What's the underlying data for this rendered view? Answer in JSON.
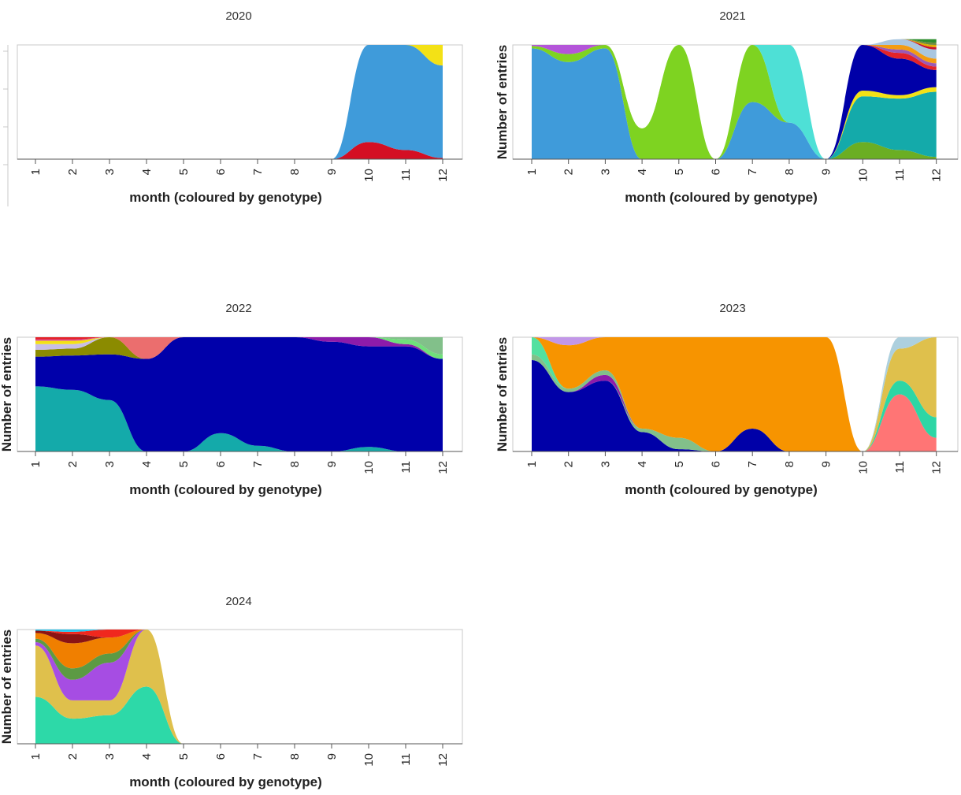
{
  "chart_data": [
    {
      "type": "area",
      "title": "2020",
      "xlabel": "month (coloured by genotype)",
      "ylabel": "",
      "categories": [
        "1",
        "2",
        "3",
        "4",
        "5",
        "6",
        "7",
        "8",
        "9",
        "10",
        "11",
        "12"
      ],
      "normalized": true,
      "series": [
        {
          "color": "#D40F23",
          "values": [
            0,
            0,
            0,
            0,
            0,
            0,
            0,
            0,
            0,
            0.15,
            0.08,
            0.01
          ]
        },
        {
          "color": "#3F9BDA",
          "values": [
            0,
            0,
            0,
            0,
            0,
            0,
            0,
            0,
            0,
            0.85,
            0.92,
            0.81
          ]
        },
        {
          "color": "#F3E116",
          "values": [
            0,
            0,
            0,
            0,
            0,
            0,
            0,
            0,
            0,
            0,
            0,
            0.18
          ]
        }
      ]
    },
    {
      "type": "area",
      "title": "2021",
      "xlabel": "month (coloured by genotype)",
      "ylabel": "Number of entries",
      "categories": [
        "1",
        "2",
        "3",
        "4",
        "5",
        "6",
        "7",
        "8",
        "9",
        "10",
        "11",
        "12"
      ],
      "normalized": true,
      "series": [
        {
          "color": "#6BAE23",
          "values": [
            0,
            0,
            0,
            0,
            0,
            0,
            0,
            0,
            0,
            0.15,
            0.08,
            0.02
          ]
        },
        {
          "color": "#14AAAA",
          "values": [
            0,
            0,
            0,
            0,
            0,
            0,
            0,
            0,
            0,
            0.4,
            0.45,
            0.57
          ]
        },
        {
          "color": "#F3E116",
          "values": [
            0,
            0,
            0,
            0,
            0,
            0,
            0,
            0,
            0,
            0.05,
            0.03,
            0.04
          ]
        },
        {
          "color": "#3F9BDA",
          "values": [
            0.97,
            0.85,
            0.97,
            0,
            0,
            0,
            0.5,
            0.32,
            0,
            0,
            0,
            0
          ]
        },
        {
          "color": "#7ED321",
          "values": [
            0.02,
            0.07,
            0.03,
            0.27,
            1,
            0,
            0.5,
            0,
            0,
            0,
            0,
            0
          ]
        },
        {
          "color": "#FFFFFF",
          "values": [
            0,
            0,
            0,
            0.73,
            0,
            0,
            0,
            0,
            0,
            0,
            0,
            0
          ]
        },
        {
          "color": "#4EE0D6",
          "values": [
            0,
            0,
            0,
            0,
            0,
            0,
            0,
            0.68,
            0,
            0,
            0,
            0
          ]
        },
        {
          "color": "#0000A8",
          "values": [
            0,
            0,
            0,
            0,
            0,
            0,
            0,
            0,
            0,
            0.4,
            0.32,
            0.15
          ]
        },
        {
          "color": "#E32329",
          "values": [
            0,
            0,
            0,
            0,
            0,
            0,
            0,
            0,
            0,
            0,
            0.05,
            0.03
          ]
        },
        {
          "color": "#9B59B6",
          "values": [
            0,
            0,
            0,
            0,
            0,
            0,
            0,
            0,
            0,
            0,
            0.03,
            0.03
          ]
        },
        {
          "color": "#F39C12",
          "values": [
            0,
            0,
            0,
            0,
            0,
            0,
            0,
            0,
            0,
            0,
            0.04,
            0.04
          ]
        },
        {
          "color": "#A9C6E0",
          "values": [
            0,
            0,
            0,
            0,
            0,
            0,
            0,
            0,
            0,
            0,
            0.05,
            0.08
          ]
        },
        {
          "color": "#C8102E",
          "values": [
            0,
            0,
            0,
            0,
            0,
            0,
            0,
            0,
            0,
            0,
            0,
            0.02
          ]
        },
        {
          "color": "#B455D9",
          "values": [
            0.01,
            0.08,
            0,
            0,
            0,
            0,
            0,
            0,
            0,
            0,
            0,
            0
          ]
        },
        {
          "color": "#E0AD00",
          "values": [
            0,
            0,
            0,
            0,
            0,
            0,
            0,
            0,
            0,
            0,
            0,
            0.02
          ]
        },
        {
          "color": "#6E8B3D",
          "values": [
            0,
            0,
            0,
            0,
            0,
            0,
            0,
            0,
            0,
            0,
            0,
            0.02
          ]
        },
        {
          "color": "#2C8C2C",
          "values": [
            0,
            0,
            0,
            0,
            0,
            0,
            0,
            0,
            0,
            0,
            0,
            0.03
          ]
        }
      ]
    },
    {
      "type": "area",
      "title": "2022",
      "xlabel": "month (coloured by genotype)",
      "ylabel": "Number of entries",
      "categories": [
        "1",
        "2",
        "3",
        "4",
        "5",
        "6",
        "7",
        "8",
        "9",
        "10",
        "11",
        "12"
      ],
      "normalized": true,
      "series": [
        {
          "color": "#14AAAA",
          "values": [
            0.57,
            0.54,
            0.45,
            0,
            0,
            0.16,
            0.05,
            0,
            0,
            0.04,
            0,
            0
          ]
        },
        {
          "color": "#0000AA",
          "values": [
            0.26,
            0.3,
            0.4,
            0.81,
            1,
            0.84,
            0.95,
            1,
            0.96,
            0.88,
            0.92,
            0.81
          ]
        },
        {
          "color": "#8B8B00",
          "values": [
            0.06,
            0.06,
            0.15,
            0,
            0,
            0,
            0,
            0,
            0,
            0,
            0,
            0
          ]
        },
        {
          "color": "#C8BEE6",
          "values": [
            0.05,
            0.04,
            0,
            0,
            0,
            0,
            0,
            0,
            0,
            0,
            0,
            0
          ]
        },
        {
          "color": "#EB6E6E",
          "values": [
            0,
            0,
            0,
            0.19,
            0,
            0,
            0,
            0,
            0,
            0,
            0,
            0
          ]
        },
        {
          "color": "#8E1BAA",
          "values": [
            0,
            0,
            0,
            0,
            0,
            0,
            0,
            0,
            0.04,
            0.08,
            0.02,
            0
          ]
        },
        {
          "color": "#6FE07A",
          "values": [
            0,
            0,
            0,
            0,
            0,
            0,
            0,
            0,
            0,
            0,
            0.04,
            0.04
          ]
        },
        {
          "color": "#82C08A",
          "values": [
            0,
            0,
            0,
            0,
            0,
            0,
            0,
            0,
            0,
            0,
            0.02,
            0.15
          ]
        },
        {
          "color": "#F3E116",
          "values": [
            0.03,
            0.03,
            0,
            0,
            0,
            0,
            0,
            0,
            0,
            0,
            0,
            0
          ]
        },
        {
          "color": "#D8429E",
          "values": [
            0.01,
            0.01,
            0,
            0,
            0,
            0,
            0,
            0,
            0,
            0,
            0,
            0
          ]
        },
        {
          "color": "#E32329",
          "values": [
            0.02,
            0.02,
            0,
            0,
            0,
            0,
            0,
            0,
            0,
            0,
            0,
            0
          ]
        }
      ]
    },
    {
      "type": "area",
      "title": "2023",
      "xlabel": "month (coloured by genotype)",
      "ylabel": "Number of entries",
      "categories": [
        "1",
        "2",
        "3",
        "4",
        "5",
        "6",
        "7",
        "8",
        "9",
        "10",
        "11",
        "12"
      ],
      "normalized": true,
      "series": [
        {
          "color": "#0000A8",
          "values": [
            0.8,
            0.52,
            0.62,
            0.17,
            0.02,
            0,
            0.2,
            0,
            0,
            0,
            0,
            0
          ]
        },
        {
          "color": "#82C08A",
          "values": [
            0,
            0,
            0,
            0.03,
            0.1,
            0,
            0,
            0,
            0,
            0,
            0,
            0
          ]
        },
        {
          "color": "#8E1BAA",
          "values": [
            0,
            0,
            0.05,
            0,
            0,
            0,
            0,
            0,
            0,
            0,
            0,
            0
          ]
        },
        {
          "color": "#82C08A",
          "values": [
            0.05,
            0.03,
            0.04,
            0,
            0,
            0,
            0,
            0,
            0,
            0,
            0,
            0
          ]
        },
        {
          "color": "#53E0A0",
          "values": [
            0.15,
            0,
            0,
            0,
            0,
            0,
            0,
            0,
            0,
            0,
            0,
            0
          ]
        },
        {
          "color": "#F79400",
          "values": [
            0,
            0.38,
            0.29,
            0.8,
            0.88,
            1,
            0.8,
            1,
            1,
            0,
            0,
            0
          ]
        },
        {
          "color": "#C297E8",
          "values": [
            0,
            0.07,
            0,
            0,
            0,
            0,
            0,
            0,
            0,
            0,
            0,
            0
          ]
        },
        {
          "color": "#FF7575",
          "values": [
            0,
            0,
            0,
            0,
            0,
            0,
            0,
            0,
            0,
            0,
            0.5,
            0.12
          ]
        },
        {
          "color": "#2DD6A5",
          "values": [
            0,
            0,
            0,
            0,
            0,
            0,
            0,
            0,
            0,
            0,
            0.12,
            0.18
          ]
        },
        {
          "color": "#DFC04C",
          "values": [
            0,
            0,
            0,
            0,
            0,
            0,
            0,
            0,
            0,
            0,
            0.28,
            0.7
          ]
        },
        {
          "color": "#ADD0DE",
          "values": [
            0,
            0,
            0,
            0,
            0,
            0,
            0,
            0,
            0,
            0,
            0.1,
            0
          ]
        }
      ]
    },
    {
      "type": "area",
      "title": "2024",
      "xlabel": "month (coloured by genotype)",
      "ylabel": "Number of entries",
      "categories": [
        "1",
        "2",
        "3",
        "4",
        "5",
        "6",
        "7",
        "8",
        "9",
        "10",
        "11",
        "12"
      ],
      "normalized": true,
      "series": [
        {
          "color": "#2DD9A8",
          "values": [
            0.41,
            0.22,
            0.25,
            0.5,
            0,
            0,
            0,
            0,
            0,
            0,
            0,
            0
          ]
        },
        {
          "color": "#DFC04C",
          "values": [
            0.45,
            0.16,
            0.13,
            0.5,
            0,
            0,
            0,
            0,
            0,
            0,
            0,
            0
          ]
        },
        {
          "color": "#A64DE3",
          "values": [
            0.03,
            0.18,
            0.33,
            0,
            0,
            0,
            0,
            0,
            0,
            0,
            0,
            0
          ]
        },
        {
          "color": "#5C9A44",
          "values": [
            0.03,
            0.1,
            0.08,
            0,
            0,
            0,
            0,
            0,
            0,
            0,
            0,
            0
          ]
        },
        {
          "color": "#F07F00",
          "values": [
            0.05,
            0.22,
            0.14,
            0,
            0,
            0,
            0,
            0,
            0,
            0,
            0,
            0
          ]
        },
        {
          "color": "#8B1414",
          "values": [
            0.02,
            0.08,
            0,
            0,
            0,
            0,
            0,
            0,
            0,
            0,
            0,
            0
          ]
        },
        {
          "color": "#F0281E",
          "values": [
            0,
            0.02,
            0.07,
            0,
            0,
            0,
            0,
            0,
            0,
            0,
            0,
            0
          ]
        },
        {
          "color": "#25C5F0",
          "values": [
            0.01,
            0.02,
            0,
            0,
            0,
            0,
            0,
            0,
            0,
            0,
            0,
            0
          ]
        }
      ]
    }
  ]
}
